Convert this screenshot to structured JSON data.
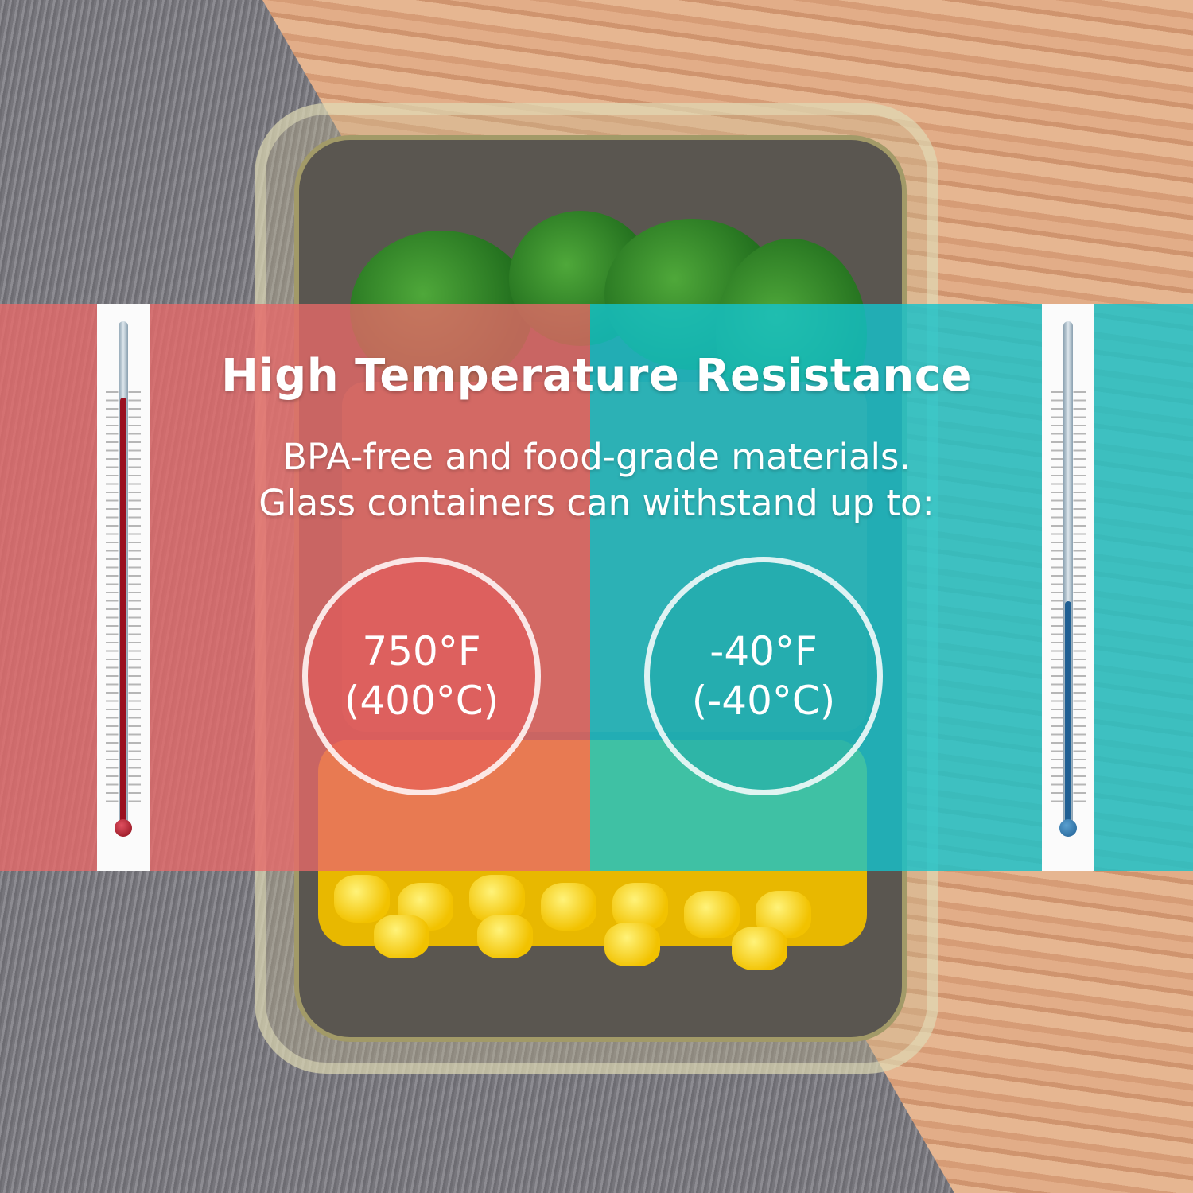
{
  "headline": {
    "title": "High Temperature Resistance",
    "line1": "BPA-free and food-grade materials.",
    "line2": "Glass containers can withstand up to:"
  },
  "hot": {
    "fahrenheit": "750°F",
    "celsius": "(400°C)",
    "color": "#e86969",
    "thermometer_level_pct": 85
  },
  "cold": {
    "fahrenheit": "-40°F",
    "celsius": "(-40°C)",
    "color": "#14c3cd",
    "thermometer_level_pct": 45
  }
}
